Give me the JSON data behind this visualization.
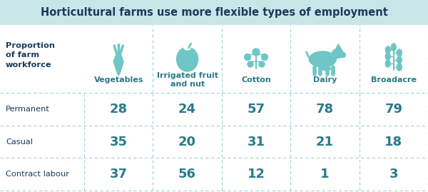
{
  "title": "Horticultural farms use more flexible types of employment",
  "title_bg": "#c8e6e8",
  "bg_color": "#ffffff",
  "columns": [
    "Vegetables",
    "Irrigated fruit\nand nut",
    "Cotton",
    "Dairy",
    "Broadacre"
  ],
  "row_labels": [
    "Permanent",
    "Casual",
    "Contract labour"
  ],
  "prop_label": "Proportion\nof farm\nworkforce",
  "data": [
    [
      "28",
      "24",
      "57",
      "78",
      "79"
    ],
    [
      "35",
      "20",
      "31",
      "21",
      "18"
    ],
    [
      "37",
      "56",
      "12",
      "1",
      "3"
    ]
  ],
  "teal_color": "#6ec6c6",
  "title_text_color": "#1a3a5c",
  "row_label_color": "#1a3a5c",
  "value_color": "#2a7a8a",
  "dashed_line_color": "#9dd5d8",
  "col_header_color": "#2a7a8a",
  "prop_label_color": "#1a3a5c"
}
